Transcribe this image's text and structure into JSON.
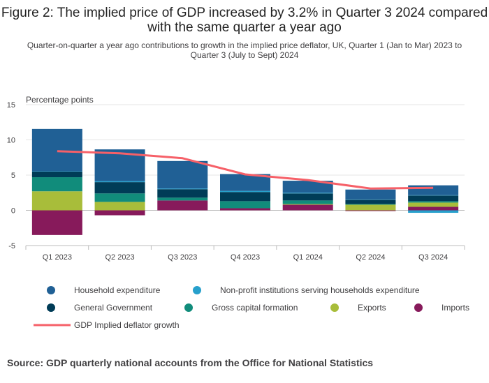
{
  "title": "Figure 2: The implied price of GDP increased by 3.2% in Quarter 3 2024 compared with the same quarter a year ago",
  "subtitle": "Quarter-on-quarter a year ago contributions to growth in the implied price deflator, UK, Quarter 1 (Jan to Mar) 2023 to Quarter 3 (July to Sept) 2024",
  "source": "Source: GDP quarterly national accounts from the Office for National Statistics",
  "colors": {
    "household": "#206095",
    "npish": "#27A0CC",
    "government": "#003C57",
    "gcf": "#118C7B",
    "exports": "#A8BD3A",
    "imports": "#871A5B",
    "deflator": "#F66068"
  },
  "chart_data": {
    "type": "bar",
    "stacked": true,
    "categories": [
      "Q1 2023",
      "Q2 2023",
      "Q3 2023",
      "Q4 2023",
      "Q1 2024",
      "Q2 2024",
      "Q3 2024"
    ],
    "ylabel": "Percentage points",
    "ylim": [
      -5,
      15
    ],
    "yticks": [
      -5,
      0,
      5,
      10,
      15
    ],
    "grid": true,
    "legend_position": "bottom",
    "series": [
      {
        "name": "Household expenditure",
        "key": "household",
        "values": [
          6.0,
          4.5,
          3.9,
          2.4,
          1.7,
          1.4,
          1.4
        ]
      },
      {
        "name": "Non-profit institutions serving households expenditure",
        "key": "npish",
        "values": [
          0.05,
          0.15,
          0.1,
          0.15,
          0.1,
          0.05,
          0.05
        ]
      },
      {
        "name": "General Government",
        "key": "government",
        "values": [
          0.8,
          1.6,
          1.2,
          1.3,
          1.0,
          0.6,
          0.8
        ]
      },
      {
        "name": "Gross capital formation",
        "key": "gcf",
        "values": [
          2.0,
          1.2,
          0.4,
          1.0,
          0.5,
          0.1,
          0.2
        ]
      },
      {
        "name": "Exports",
        "key": "exports",
        "values": [
          2.7,
          1.2,
          0.0,
          0.0,
          0.1,
          0.8,
          0.6
        ]
      },
      {
        "name": "Imports",
        "key": "imports",
        "values": [
          -3.5,
          -0.7,
          1.4,
          0.3,
          0.8,
          -0.1,
          0.5
        ]
      }
    ],
    "negative_extras": [
      {
        "key": "npish",
        "values": [
          0,
          0,
          0,
          0,
          0,
          0,
          -0.35
        ]
      }
    ],
    "line": {
      "name": "GDP Implied deflator growth",
      "key": "deflator",
      "values": [
        8.4,
        8.1,
        7.4,
        5.1,
        4.3,
        3.1,
        3.2
      ]
    }
  }
}
